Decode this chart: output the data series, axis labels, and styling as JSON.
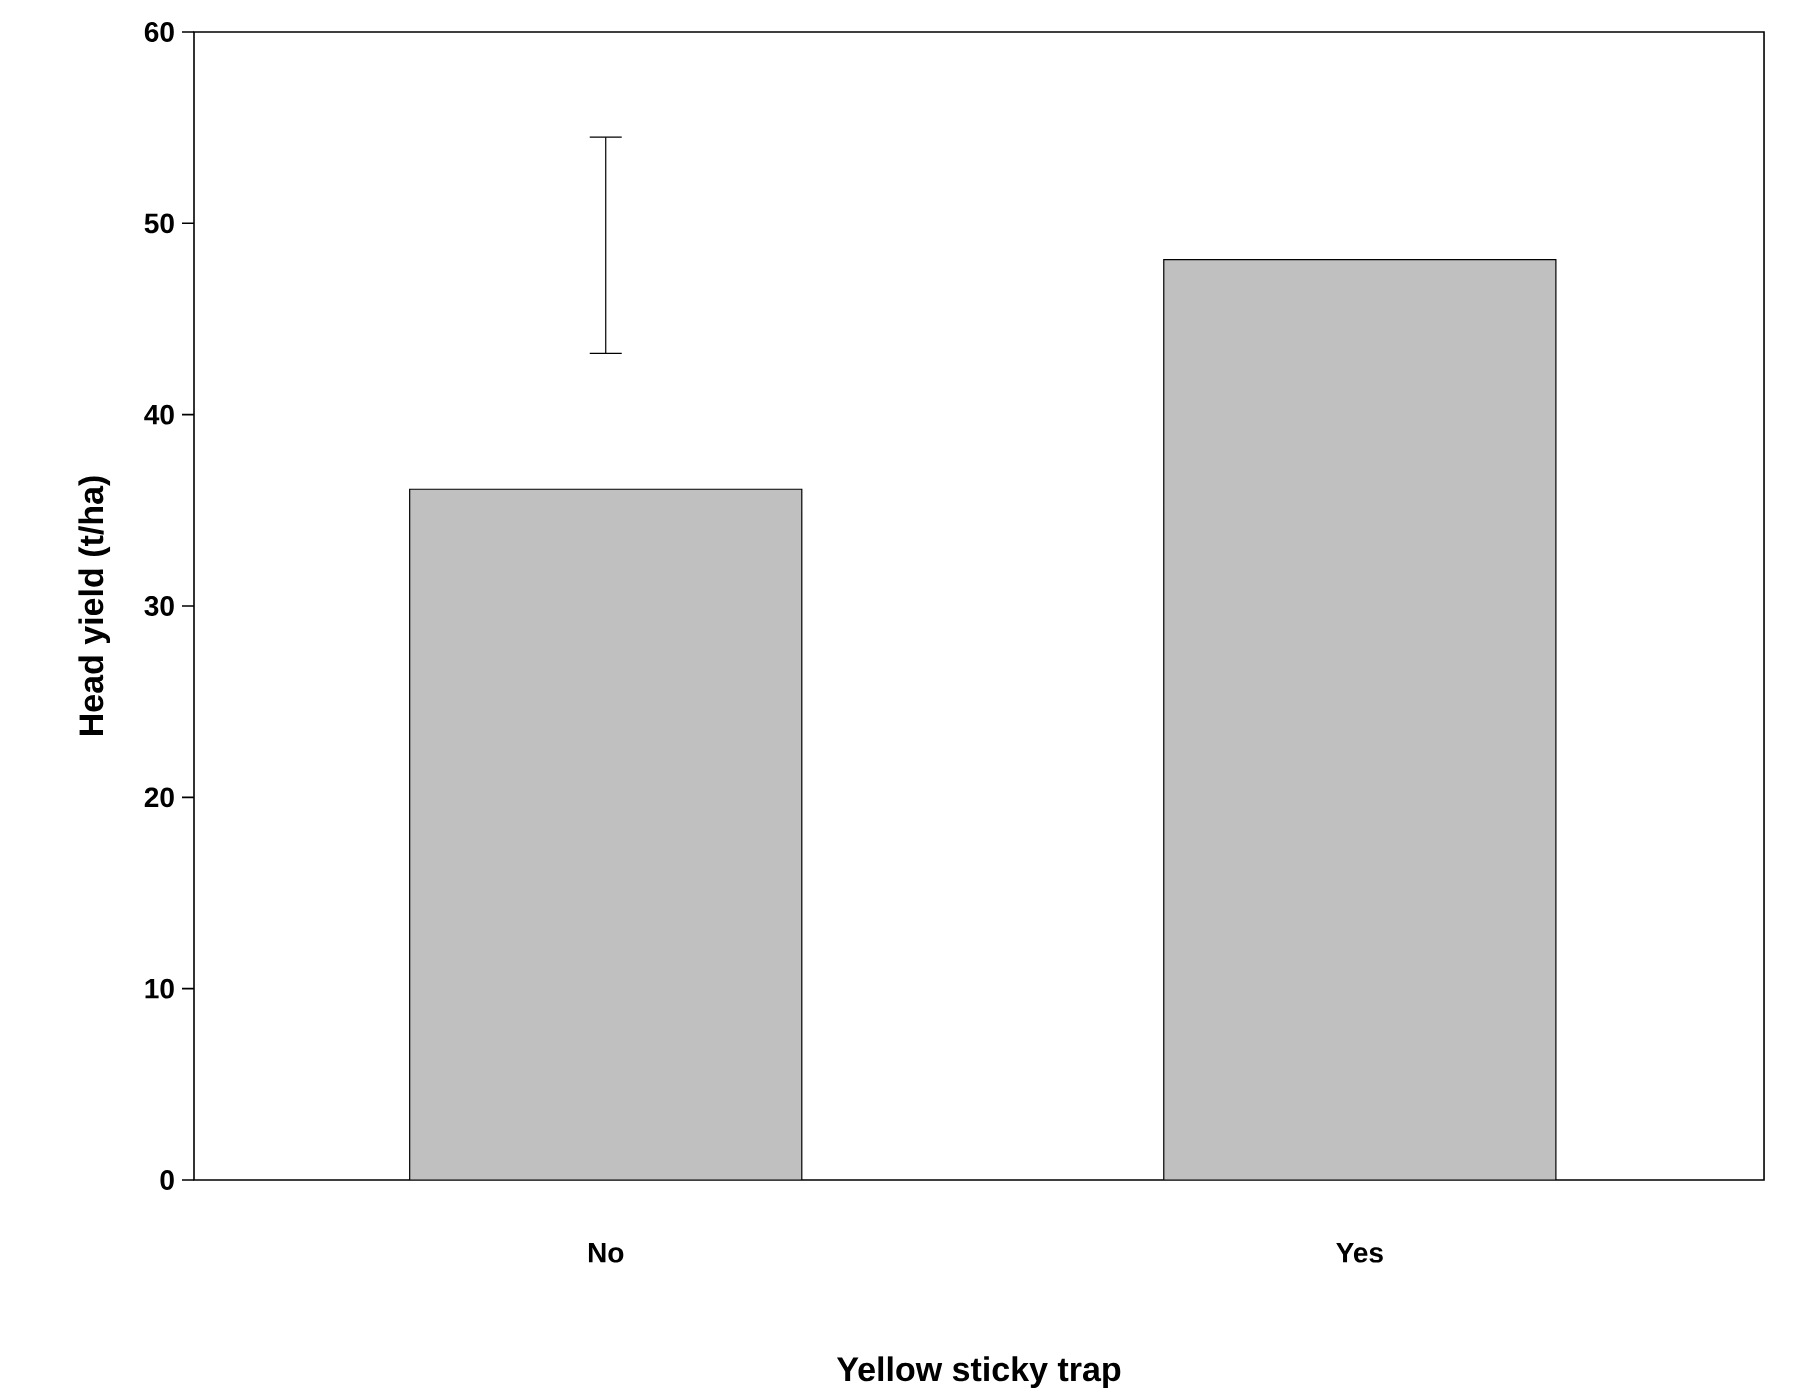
{
  "chart_data": {
    "type": "bar",
    "xlabel": "Yellow sticky trap",
    "ylabel": "Head yield (t/ha)",
    "categories": [
      "No",
      "Yes"
    ],
    "values": [
      36.1,
      48.1
    ],
    "errors": [
      [
        43.2,
        54.5
      ],
      null
    ],
    "color": "#c0c0c0",
    "ylim": [
      0,
      60
    ],
    "yticks": [
      0,
      10,
      20,
      30,
      40,
      50,
      60
    ]
  }
}
